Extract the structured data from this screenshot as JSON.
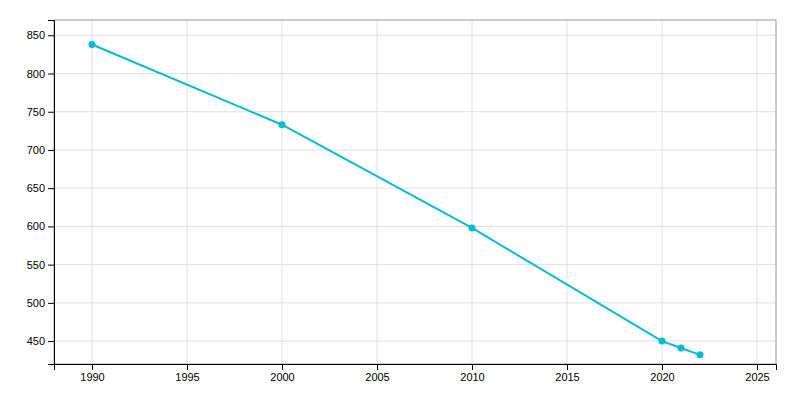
{
  "chart_data": {
    "type": "line",
    "x": [
      1990,
      2000,
      2010,
      2020,
      2021,
      2022
    ],
    "values": [
      838,
      733,
      598,
      450,
      441,
      432
    ],
    "color": "#00BCD4",
    "marker": "circle",
    "xlim": [
      1988,
      2026
    ],
    "ylim": [
      420,
      870
    ],
    "xticks": [
      1990,
      1995,
      2000,
      2005,
      2010,
      2015,
      2020,
      2025
    ],
    "yticks": [
      450,
      500,
      550,
      600,
      650,
      700,
      750,
      800,
      850
    ],
    "grid": true
  }
}
